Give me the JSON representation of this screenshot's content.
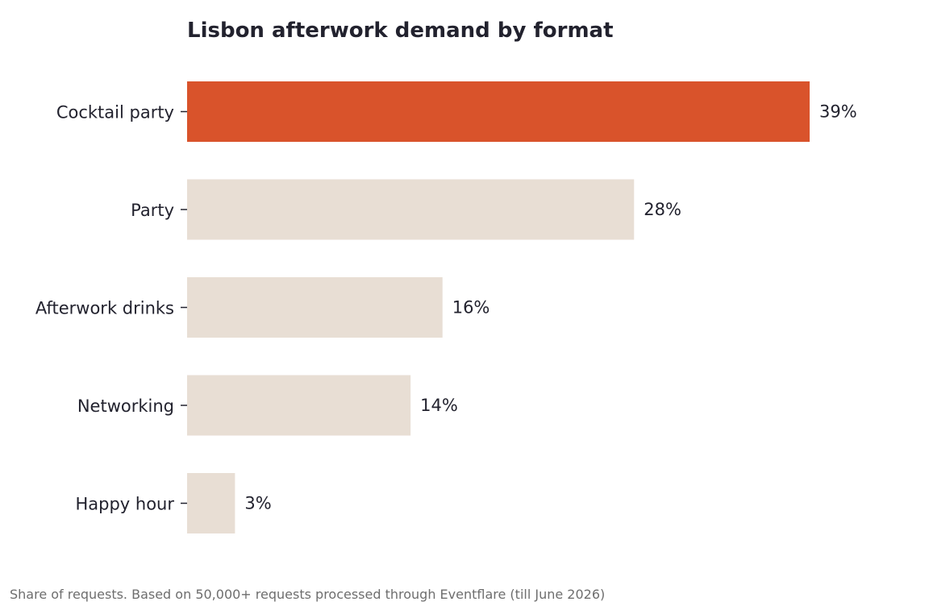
{
  "chart_data": {
    "type": "bar",
    "orientation": "horizontal",
    "title": "Lisbon afterwork demand by format",
    "xlabel": "",
    "ylabel": "",
    "categories": [
      "Cocktail party",
      "Party",
      "Afterwork drinks",
      "Networking",
      "Happy hour"
    ],
    "values": [
      39,
      28,
      16,
      14,
      3
    ],
    "value_labels": [
      "39%",
      "28%",
      "16%",
      "14%",
      "3%"
    ],
    "value_unit": "%",
    "xlim": [
      0,
      39
    ],
    "grid": false,
    "legend": "none",
    "highlighted_category": "Cocktail party",
    "footnote": "Share of requests. Based on 50,000+ requests processed through Eventflare (till June 2026)"
  },
  "colors": {
    "highlight": "#d9532b",
    "default": "#e8ded4",
    "text": "#22222e",
    "footnote": "#6e6e6e"
  }
}
